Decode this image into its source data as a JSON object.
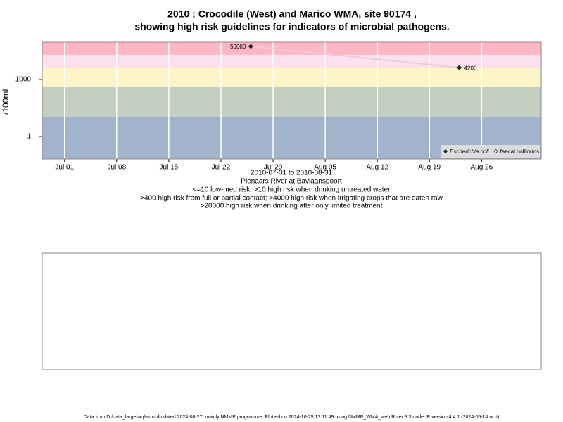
{
  "chart_data": {
    "type": "line",
    "title": "2010 : Crocodile (West) and Marico WMA, site 90174 ,",
    "subtitle": "showing high risk guidelines for indicators of microbial pathogens.",
    "y_label": "/100mL",
    "x_label": "2010-07-01 to 2010-08-31",
    "site": "Pienaars River at Baviaanspoort",
    "notes": [
      "<=10 low-med risk; >10 high risk when drinking untreated water",
      ">400 high risk from full or partial contact; >4000 high risk when irrigating crops that are eaten raw",
      ">20000 high risk when drinking after only limited treatment"
    ],
    "x": [
      "2010-07-26",
      "2010-08-23"
    ],
    "series": [
      {
        "name": "Escherichia coli",
        "color": "#222222",
        "line_color": "#f2c9d2",
        "values": [
          56000,
          4200
        ]
      },
      {
        "name": "faecal coliforms",
        "color": "#222222",
        "line_color": "#f2c9d2",
        "values": [
          null,
          null
        ]
      }
    ],
    "log_y": true,
    "ylim": [
      0.065,
      92000
    ],
    "yticks": [
      1,
      1000
    ],
    "xlim": [
      "2010-06-28",
      "2010-09-03"
    ],
    "xticks": [
      {
        "value": "2010-07-01",
        "label": "Jul 01"
      },
      {
        "value": "2010-07-08",
        "label": "Jul 08"
      },
      {
        "value": "2010-07-15",
        "label": "Jul 15"
      },
      {
        "value": "2010-07-22",
        "label": "Jul 22"
      },
      {
        "value": "2010-07-29",
        "label": "Jul 29"
      },
      {
        "value": "2010-08-05",
        "label": "Aug 05"
      },
      {
        "value": "2010-08-12",
        "label": "Aug 12"
      },
      {
        "value": "2010-08-19",
        "label": "Aug 19"
      },
      {
        "value": "2010-08-26",
        "label": "Aug 26"
      }
    ],
    "thresholds": [
      10,
      400,
      4000,
      20000
    ],
    "band_colors": [
      "#a2b4cc",
      "#c4cfc0",
      "#fdf5c8",
      "#fde0f0",
      "#ffb6c4"
    ],
    "grid": true,
    "legend": "bottom-right",
    "footer": "Data from D:/data_large/wq/wms.db dated 2024-08-27, mainly NMMP programme. Plotted on 2024-10-25 13:11:49 using NMMP_WMA_web.R ver 9.3 under R version 4.4.1 (2024-06-14 ucrt)"
  }
}
